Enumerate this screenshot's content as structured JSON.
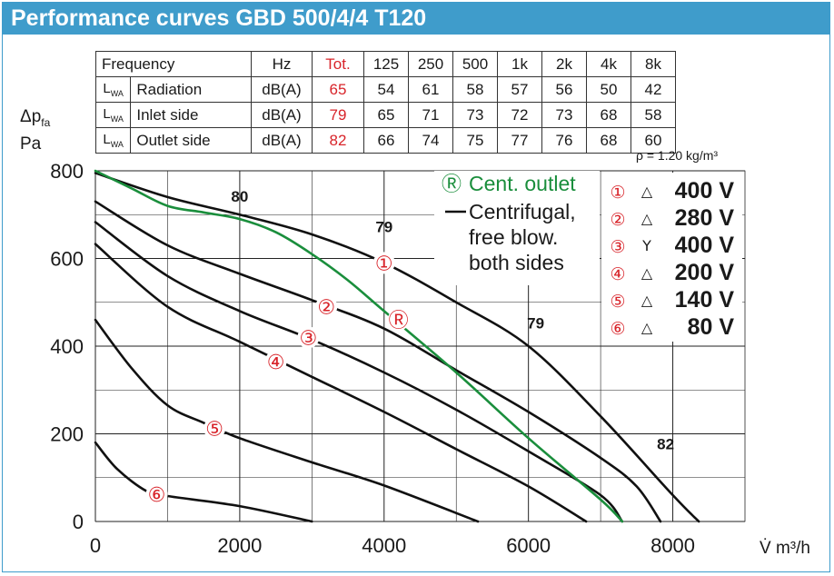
{
  "header": {
    "title": "Performance curves GBD 500/4/4 T120"
  },
  "table": {
    "columns": [
      "Frequency",
      "Hz",
      "Tot.",
      "125",
      "250",
      "500",
      "1k",
      "2k",
      "4k",
      "8k"
    ],
    "lwa_symbol": "L",
    "lwa_sub": "WA",
    "rows": [
      {
        "name": "Radiation",
        "unit": "dB(A)",
        "tot": "65",
        "bands": [
          "54",
          "61",
          "58",
          "57",
          "56",
          "50",
          "42"
        ]
      },
      {
        "name": "Inlet side",
        "unit": "dB(A)",
        "tot": "79",
        "bands": [
          "65",
          "71",
          "73",
          "72",
          "73",
          "68",
          "58"
        ]
      },
      {
        "name": "Outlet side",
        "unit": "dB(A)",
        "tot": "82",
        "bands": [
          "66",
          "74",
          "75",
          "77",
          "76",
          "68",
          "60"
        ]
      }
    ]
  },
  "density_note": "ρ = 1.20 kg/m³",
  "colors": {
    "brand": "#3f9ccb",
    "accent_red": "#d8242a",
    "curve_green": "#1a8e3c",
    "curve_black": "#111111"
  },
  "chart_data": {
    "type": "line",
    "ylabel_symbol": "Δp",
    "ylabel_sub": "fa",
    "ylabel_unit": "Pa",
    "xlabel": "V̇  m³/h",
    "xlim": [
      0,
      9000
    ],
    "ylim": [
      0,
      800
    ],
    "x_ticks": [
      0,
      2000,
      4000,
      6000,
      8000
    ],
    "y_ticks": [
      0,
      200,
      400,
      600,
      800
    ],
    "series": [
      {
        "name": "1",
        "marker": "①",
        "marker_at": [
          4000,
          590
        ],
        "color": "black",
        "x": [
          0,
          1000,
          2000,
          3000,
          4000,
          5000,
          6000,
          7000,
          8000,
          8360
        ],
        "y": [
          795,
          740,
          700,
          655,
          590,
          500,
          400,
          240,
          60,
          0
        ]
      },
      {
        "name": "2",
        "marker": "②",
        "marker_at": [
          3200,
          490
        ],
        "color": "black",
        "x": [
          0,
          1000,
          2000,
          3000,
          4000,
          5000,
          6000,
          7000,
          7500,
          7830
        ],
        "y": [
          730,
          630,
          565,
          505,
          440,
          345,
          250,
          145,
          80,
          0
        ]
      },
      {
        "name": "3",
        "marker": "③",
        "marker_at": [
          2950,
          420
        ],
        "color": "black",
        "x": [
          0,
          1000,
          2000,
          3000,
          4000,
          5000,
          6000,
          7000,
          7300
        ],
        "y": [
          683,
          560,
          480,
          415,
          340,
          255,
          160,
          60,
          0
        ]
      },
      {
        "name": "4",
        "marker": "④",
        "marker_at": [
          2500,
          365
        ],
        "color": "black",
        "x": [
          0,
          1000,
          2000,
          3000,
          4000,
          5000,
          6000,
          6800
        ],
        "y": [
          633,
          490,
          410,
          330,
          250,
          165,
          80,
          0
        ]
      },
      {
        "name": "5",
        "marker": "⑤",
        "marker_at": [
          1650,
          212
        ],
        "color": "black",
        "x": [
          0,
          500,
          1000,
          1500,
          2000,
          3000,
          4000,
          5300
        ],
        "y": [
          460,
          350,
          265,
          225,
          190,
          135,
          82,
          0
        ]
      },
      {
        "name": "6",
        "marker": "⑥",
        "marker_at": [
          850,
          62
        ],
        "color": "black",
        "x": [
          0,
          300,
          700,
          1000,
          2000,
          3000
        ],
        "y": [
          180,
          120,
          70,
          58,
          35,
          0
        ]
      },
      {
        "name": "R",
        "marker": "Ⓡ",
        "marker_at": [
          4200,
          460
        ],
        "color": "green",
        "x": [
          0,
          500,
          1000,
          1500,
          2000,
          2500,
          3000,
          3500,
          4000,
          5000,
          6000,
          7000,
          7300
        ],
        "y": [
          800,
          760,
          720,
          705,
          690,
          660,
          610,
          550,
          480,
          340,
          190,
          50,
          0
        ]
      }
    ],
    "efficiency_labels": [
      {
        "text": "80",
        "x": 2000,
        "y": 730
      },
      {
        "text": "79",
        "x": 4000,
        "y": 660
      },
      {
        "text": "79",
        "x": 6100,
        "y": 440
      },
      {
        "text": "82",
        "x": 7900,
        "y": 165
      }
    ],
    "legend": {
      "cent_outlet_marker": "Ⓡ",
      "cent_outlet_label": "Cent. outlet",
      "centrifugal_lines": [
        "Centrifugal,",
        "free blow.",
        "both sides"
      ],
      "speeds": [
        {
          "num": "①",
          "conn": "△",
          "voltage": "400 V"
        },
        {
          "num": "②",
          "conn": "△",
          "voltage": "280 V"
        },
        {
          "num": "③",
          "conn": "Y",
          "voltage": "400 V"
        },
        {
          "num": "④",
          "conn": "△",
          "voltage": "200 V"
        },
        {
          "num": "⑤",
          "conn": "△",
          "voltage": "140 V"
        },
        {
          "num": "⑥",
          "conn": "△",
          "voltage": "80 V"
        }
      ]
    }
  }
}
